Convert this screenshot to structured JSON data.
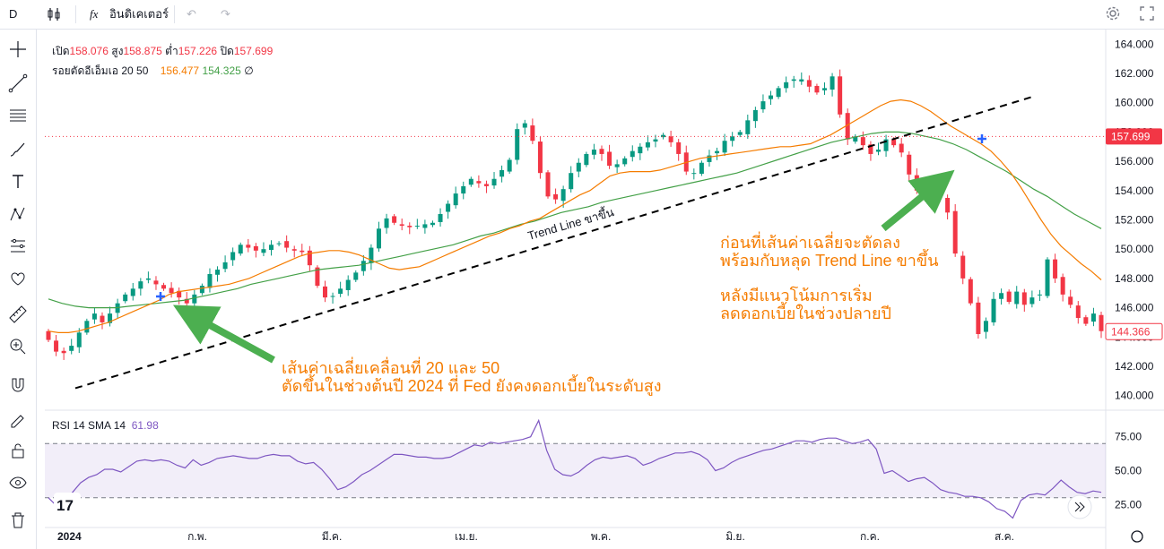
{
  "toolbar": {
    "symbol_initial": "D",
    "indicators_label": "อินดิเคเตอร์",
    "fx_label": "fx"
  },
  "sidebar_tools": [
    "crosshair-icon",
    "trendline-icon",
    "fib-icon",
    "brush-icon",
    "text-icon",
    "pattern-icon",
    "measure-icon",
    "heart-icon",
    "ruler-icon",
    "zoom-in-icon",
    "magnet-icon",
    "lock-draw-icon",
    "lock-icon",
    "eye-icon",
    "trash-icon"
  ],
  "legend": {
    "open_label": "เปิด",
    "open_value": "158.076",
    "high_label": "สูง",
    "high_value": "158.875",
    "low_label": "ต่ำ",
    "low_value": "157.226",
    "close_label": "ปิด",
    "close_value": "157.699",
    "ema_label": "รอยตัดอีเอ็มเอ 20 50",
    "ema20_value": "156.477",
    "ema50_value": "154.325",
    "ema_extra": "∅"
  },
  "rsi_legend": {
    "label": "RSI 14 SMA 14",
    "value": "61.98"
  },
  "annotations": {
    "trendline_label": "Trend Line ขาขึ้น",
    "left_line1": "เส้นค่าเฉลี่ยเคลื่อนที่ 20 และ 50",
    "left_line2": "ตัดขึ้นในช่วงต้นปี 2024 ที่ Fed ยังคงดอกเบี้ยในระดับสูง",
    "right_line1": "ก่อนที่เส้นค่าเฉลี่ยจะตัดลง",
    "right_line2": "พร้อมกับหลุด Trend Line ขาขึ้น",
    "right_line3": "หลังมีแนวโน้มการเริ่ม",
    "right_line4": "ลดดอกเบี้ยในช่วงปลายปี"
  },
  "price_labels": {
    "current": "157.699",
    "last": "144.366"
  },
  "colors": {
    "up": "#089981",
    "down": "#f23645",
    "ema20": "#f57c00",
    "ema50": "#43a047",
    "rsi": "#7e57c2",
    "annotation": "#f57c00",
    "arrow": "#4caf50",
    "cross": "#2962ff"
  },
  "chart_data": {
    "type": "candlestick",
    "x_ticks": [
      "2024",
      "ก.พ.",
      "มี.ค.",
      "เม.ย.",
      "พ.ค.",
      "มิ.ย.",
      "ก.ค.",
      "ส.ค."
    ],
    "y_ticks": [
      140,
      142,
      144,
      146,
      148,
      150,
      152,
      154,
      156,
      158,
      160,
      162,
      164
    ],
    "y_tick_labels": [
      "140.000",
      "142.000",
      "144.000",
      "146.000",
      "148.000",
      "150.000",
      "152.000",
      "154.000",
      "156.000",
      "158.000",
      "160.000",
      "162.000",
      "164.000"
    ],
    "ylim": [
      139,
      165
    ],
    "close_path": [
      143.8,
      143.0,
      142.9,
      143.4,
      144.3,
      145.1,
      145.6,
      145.0,
      145.6,
      146.3,
      146.9,
      147.3,
      147.8,
      148.0,
      147.6,
      147.3,
      147.0,
      146.7,
      146.3,
      146.9,
      147.5,
      148.3,
      148.6,
      149.1,
      149.8,
      150.3,
      150.1,
      149.9,
      150.0,
      150.3,
      150.4,
      150.1,
      149.9,
      149.8,
      148.9,
      147.5,
      146.7,
      146.8,
      147.3,
      147.9,
      148.4,
      149.2,
      150.1,
      151.4,
      152.1,
      151.8,
      151.6,
      151.5,
      151.6,
      151.7,
      151.8,
      152.4,
      153.1,
      153.8,
      154.3,
      154.8,
      154.5,
      154.3,
      154.8,
      155.4,
      156.1,
      158.2,
      158.6,
      157.4,
      155.2,
      153.6,
      153.4,
      154.1,
      155.2,
      155.9,
      156.5,
      156.8,
      156.5,
      155.7,
      155.8,
      156.2,
      156.7,
      157.0,
      157.3,
      157.5,
      157.8,
      157.3,
      156.5,
      155.3,
      155.2,
      155.9,
      156.4,
      156.7,
      157.4,
      157.7,
      158.0,
      158.8,
      159.5,
      160.1,
      160.5,
      161.0,
      161.4,
      161.6,
      161.6,
      161.1,
      160.7,
      161.0,
      161.8,
      159.2,
      157.5,
      157.7,
      157.1,
      156.5,
      156.8,
      157.5,
      157.1,
      156.6,
      155.1,
      154.0,
      153.9,
      154.6,
      153.5,
      152.5,
      149.7,
      148.0,
      146.3,
      144.2,
      145.1,
      146.6,
      147.0,
      146.4,
      147.1,
      146.2,
      146.7,
      146.9,
      149.3,
      148.0,
      146.9,
      146.2,
      145.3,
      144.9,
      145.6,
      144.4
    ],
    "ema20_path": [
      144.4,
      144.3,
      144.3,
      144.4,
      144.6,
      144.8,
      145.0,
      145.3,
      145.6,
      145.9,
      146.2,
      146.5,
      146.9,
      147.1,
      147.2,
      147.3,
      147.4,
      147.5,
      147.6,
      147.8,
      148.0,
      148.3,
      148.6,
      148.9,
      149.2,
      149.5,
      149.7,
      149.8,
      149.9,
      149.9,
      149.8,
      149.6,
      149.3,
      149.0,
      148.7,
      148.6,
      148.7,
      148.8,
      149.1,
      149.4,
      149.7,
      150.0,
      150.3,
      150.6,
      150.9,
      151.1,
      151.4,
      151.6,
      151.9,
      152.1,
      152.5,
      152.9,
      153.3,
      153.7,
      154.0,
      154.5,
      155.0,
      155.2,
      155.3,
      155.3,
      155.3,
      155.4,
      155.6,
      155.8,
      156.0,
      156.2,
      156.3,
      156.4,
      156.5,
      156.6,
      156.7,
      156.8,
      156.9,
      157.0,
      157.0,
      157.1,
      157.2,
      157.5,
      157.8,
      158.2,
      158.6,
      159.0,
      159.4,
      159.8,
      160.1,
      160.2,
      160.1,
      159.8,
      159.4,
      158.9,
      158.4,
      158.0,
      157.6,
      157.2,
      156.7,
      156.0,
      155.2,
      154.2,
      153.1,
      152.0,
      151.0,
      150.2,
      149.6,
      149.0,
      148.5,
      147.9
    ],
    "ema50_path": [
      146.6,
      146.3,
      146.1,
      146.0,
      146.0,
      146.0,
      146.1,
      146.2,
      146.3,
      146.4,
      146.5,
      146.7,
      146.9,
      147.1,
      147.3,
      147.6,
      147.8,
      148.0,
      148.2,
      148.4,
      148.6,
      148.7,
      148.8,
      148.9,
      149.1,
      149.3,
      149.5,
      149.7,
      149.9,
      150.1,
      150.3,
      150.6,
      150.9,
      151.1,
      151.4,
      151.7,
      151.9,
      152.2,
      152.5,
      152.7,
      152.9,
      153.2,
      153.4,
      153.6,
      153.8,
      154.0,
      154.2,
      154.4,
      154.6,
      154.8,
      155.0,
      155.2,
      155.5,
      155.8,
      156.1,
      156.4,
      156.7,
      157.0,
      157.3,
      157.5,
      157.7,
      157.9,
      158.0,
      158.0,
      157.9,
      157.7,
      157.5,
      157.2,
      156.8,
      156.3,
      155.8,
      155.3,
      154.7,
      154.1,
      153.6,
      153.0,
      152.4,
      151.9,
      151.4
    ],
    "trendline": {
      "start": [
        0,
        140.5
      ],
      "end": [
        128,
        160.4
      ]
    },
    "rsi_path": [
      30,
      24,
      27,
      34,
      41,
      45,
      47,
      51,
      51,
      49,
      53,
      57,
      58,
      57,
      58,
      57,
      54,
      52,
      58,
      54,
      56,
      59,
      60,
      61,
      60,
      59,
      59,
      61,
      62,
      61,
      61,
      57,
      55,
      56,
      51,
      44,
      36,
      38,
      42,
      47,
      50,
      54,
      58,
      62,
      62,
      61,
      60,
      60,
      59,
      59,
      60,
      63,
      66,
      69,
      68,
      71,
      70,
      71,
      72,
      73,
      75,
      87,
      65,
      51,
      47,
      46,
      49,
      54,
      58,
      60,
      59,
      60,
      61,
      59,
      54,
      56,
      59,
      61,
      63,
      63,
      64,
      62,
      58,
      50,
      52,
      56,
      59,
      61,
      63,
      65,
      66,
      68,
      70,
      72,
      72,
      71,
      73,
      74,
      74,
      72,
      70,
      71,
      73,
      66,
      48,
      50,
      46,
      42,
      44,
      45,
      41,
      36,
      34,
      33,
      31,
      31,
      30,
      27,
      22,
      20,
      15,
      28,
      32,
      33,
      32,
      37,
      43,
      38,
      34,
      33,
      35,
      34
    ],
    "rsi_ylim": [
      10,
      90
    ],
    "rsi_ticks": [
      25,
      50,
      75
    ],
    "rsi_tick_labels": [
      "25.00",
      "50.00",
      "75.00"
    ],
    "rsi_band": [
      30,
      70
    ]
  }
}
